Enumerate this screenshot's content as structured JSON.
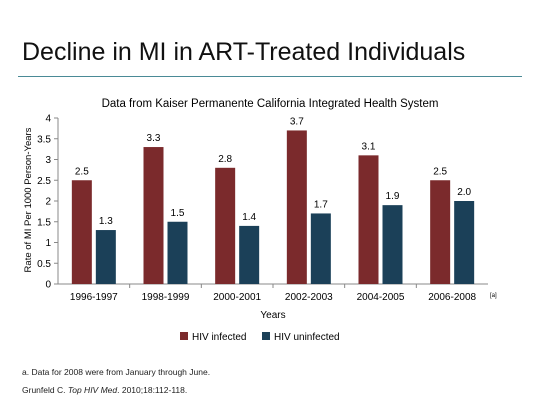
{
  "slide": {
    "title": "Decline in MI in ART-Treated Individuals",
    "footnote": "a. Data for 2008 were from January through June.",
    "citation": {
      "author": "Grunfeld C. ",
      "journal": "Top HIV Med",
      "rest": ". 2010;18:112-118."
    }
  },
  "chart_data": {
    "type": "bar",
    "title": "Data from Kaiser Permanente California Integrated Health System",
    "xlabel": "Years",
    "ylabel": "Rate of MI Per 1000 Person-Years",
    "categories": [
      "1996-1997",
      "1998-1999",
      "2000-2001",
      "2002-2003",
      "2004-2005",
      "2006-2008"
    ],
    "category_note": "[a]",
    "series": [
      {
        "name": "HIV infected",
        "color": "#7b2a2c",
        "values": [
          2.5,
          3.3,
          2.8,
          3.7,
          3.1,
          2.5
        ]
      },
      {
        "name": "HIV uninfected",
        "color": "#1b4058",
        "values": [
          1.3,
          1.5,
          1.4,
          1.7,
          1.9,
          2.0
        ]
      }
    ],
    "ylim": [
      0,
      4
    ],
    "yticks": [
      "0",
      "0.5",
      "1",
      "1.5",
      "2",
      "2.5",
      "3",
      "3.5",
      "4"
    ],
    "grid": false,
    "legend": "bottom"
  }
}
